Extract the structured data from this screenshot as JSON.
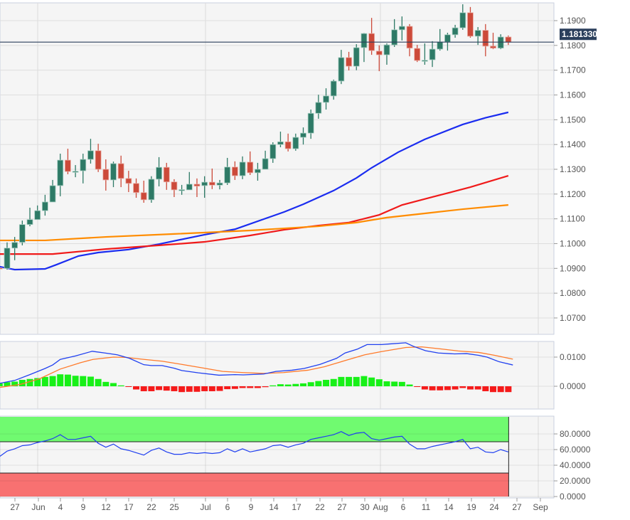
{
  "chart_data": [
    {
      "type": "candlestick",
      "title": "",
      "instrument_last_price": "1.181330",
      "y_ticks": [
        "1.1900",
        "1.1800",
        "1.1700",
        "1.1600",
        "1.1500",
        "1.1400",
        "1.1300",
        "1.1200",
        "1.1100",
        "1.1000",
        "1.0900",
        "1.0800",
        "1.0700"
      ],
      "ylim": [
        1.0635,
        1.2
      ],
      "x_ticks": [
        "27",
        "Jun",
        "4",
        "9",
        "12",
        "17",
        "22",
        "25",
        "Jul",
        "6",
        "9",
        "14",
        "17",
        "22",
        "27",
        "30",
        "Aug",
        "6",
        "11",
        "14",
        "19",
        "24",
        "27",
        "Sep"
      ],
      "candles_ohlc": [
        [
          1.0902,
          1.0905,
          1.0896,
          1.0899
        ],
        [
          1.09,
          1.1005,
          1.0895,
          1.0982
        ],
        [
          1.0982,
          1.1027,
          1.0933,
          1.1005
        ],
        [
          1.1005,
          1.1093,
          1.0993,
          1.1077
        ],
        [
          1.1077,
          1.1145,
          1.107,
          1.1097
        ],
        [
          1.1097,
          1.1154,
          1.1097,
          1.1133
        ],
        [
          1.1133,
          1.1197,
          1.1113,
          1.1168
        ],
        [
          1.1168,
          1.1257,
          1.1168,
          1.1234
        ],
        [
          1.1234,
          1.1363,
          1.1191,
          1.1337
        ],
        [
          1.1337,
          1.1383,
          1.128,
          1.1291
        ],
        [
          1.1291,
          1.1317,
          1.1268,
          1.1292
        ],
        [
          1.1294,
          1.1363,
          1.1243,
          1.134
        ],
        [
          1.134,
          1.1423,
          1.1323,
          1.1375
        ],
        [
          1.1375,
          1.1403,
          1.1289,
          1.13
        ],
        [
          1.13,
          1.134,
          1.1214,
          1.1257
        ],
        [
          1.1257,
          1.1331,
          1.1228,
          1.1323
        ],
        [
          1.1323,
          1.1355,
          1.1228,
          1.1263
        ],
        [
          1.1263,
          1.1294,
          1.1208,
          1.1243
        ],
        [
          1.1243,
          1.1263,
          1.1185,
          1.1206
        ],
        [
          1.1206,
          1.1254,
          1.1165,
          1.1177
        ],
        [
          1.1177,
          1.1272,
          1.1165,
          1.126
        ],
        [
          1.126,
          1.1349,
          1.1231,
          1.1308
        ],
        [
          1.1308,
          1.1326,
          1.1217,
          1.1249
        ],
        [
          1.1249,
          1.126,
          1.1188,
          1.1217
        ],
        [
          1.1216,
          1.1237,
          1.1197,
          1.1218
        ],
        [
          1.1217,
          1.1289,
          1.1217,
          1.124
        ],
        [
          1.124,
          1.1263,
          1.1188,
          1.1232
        ],
        [
          1.1234,
          1.1272,
          1.1185,
          1.1248
        ],
        [
          1.1248,
          1.1303,
          1.122,
          1.1236
        ],
        [
          1.1236,
          1.1257,
          1.1219,
          1.1245
        ],
        [
          1.1245,
          1.1346,
          1.1237,
          1.1309
        ],
        [
          1.1309,
          1.1332,
          1.1257,
          1.1274
        ],
        [
          1.1274,
          1.1352,
          1.126,
          1.1329
        ],
        [
          1.1329,
          1.1372,
          1.1277,
          1.1286
        ],
        [
          1.1286,
          1.1326,
          1.1254,
          1.13
        ],
        [
          1.13,
          1.1375,
          1.13,
          1.1343
        ],
        [
          1.1343,
          1.1409,
          1.1326,
          1.14
        ],
        [
          1.14,
          1.1452,
          1.1389,
          1.1411
        ],
        [
          1.1411,
          1.1444,
          1.1372,
          1.1383
        ],
        [
          1.1383,
          1.1444,
          1.1375,
          1.1429
        ],
        [
          1.1429,
          1.1469,
          1.14,
          1.1446
        ],
        [
          1.1446,
          1.1541,
          1.1423,
          1.1526
        ],
        [
          1.1526,
          1.1601,
          1.1504,
          1.157
        ],
        [
          1.157,
          1.1627,
          1.1541,
          1.1596
        ],
        [
          1.1596,
          1.1662,
          1.1581,
          1.1656
        ],
        [
          1.1656,
          1.1782,
          1.1644,
          1.1751
        ],
        [
          1.1751,
          1.1774,
          1.1699,
          1.1716
        ],
        [
          1.1716,
          1.1805,
          1.17,
          1.1791
        ],
        [
          1.1791,
          1.185,
          1.1733,
          1.1848
        ],
        [
          1.1848,
          1.1911,
          1.1762,
          1.1779
        ],
        [
          1.1777,
          1.18,
          1.1696,
          1.1762
        ],
        [
          1.1762,
          1.1808,
          1.1722,
          1.1802
        ],
        [
          1.1802,
          1.1906,
          1.1794,
          1.1863
        ],
        [
          1.1863,
          1.1917,
          1.182,
          1.1877
        ],
        [
          1.1877,
          1.1886,
          1.1756,
          1.1789
        ],
        [
          1.1788,
          1.1802,
          1.1733,
          1.1739
        ],
        [
          1.1739,
          1.1808,
          1.1722,
          1.174
        ],
        [
          1.1742,
          1.1817,
          1.1713,
          1.1785
        ],
        [
          1.1785,
          1.1866,
          1.1779,
          1.1814
        ],
        [
          1.1814,
          1.1851,
          1.1779,
          1.1843
        ],
        [
          1.1843,
          1.1883,
          1.1831,
          1.1871
        ],
        [
          1.1871,
          1.1966,
          1.1863,
          1.1932
        ],
        [
          1.1932,
          1.1955,
          1.1831,
          1.1837
        ],
        [
          1.1837,
          1.1874,
          1.1802,
          1.1861
        ],
        [
          1.1861,
          1.1886,
          1.1756,
          1.1797
        ],
        [
          1.1797,
          1.1851,
          1.1785,
          1.1789
        ],
        [
          1.1789,
          1.1845,
          1.1785,
          1.1834
        ],
        [
          1.1834,
          1.184,
          1.1802,
          1.1813
        ]
      ],
      "moving_averages": [
        {
          "name": "MA blue",
          "color": "#1a2cf0",
          "points": [
            [
              0,
              1.0907
            ],
            [
              2,
              1.0895
            ],
            [
              6,
              1.0898
            ],
            [
              7.5,
              1.0915
            ],
            [
              10.4,
              1.095
            ],
            [
              13,
              1.0964
            ],
            [
              17,
              1.0976
            ],
            [
              21,
              1.0998
            ],
            [
              27,
              1.1036
            ],
            [
              31,
              1.1058
            ],
            [
              37.5,
              1.1128
            ],
            [
              40,
              1.1159
            ],
            [
              44,
              1.1214
            ],
            [
              47,
              1.1265
            ],
            [
              49,
              1.1306
            ],
            [
              52.5,
              1.1369
            ],
            [
              56,
              1.1421
            ],
            [
              61,
              1.1481
            ],
            [
              64,
              1.1508
            ],
            [
              67,
              1.153
            ]
          ]
        },
        {
          "name": "MA red",
          "color": "#f01a1a",
          "points": [
            [
              0,
              1.0958
            ],
            [
              7,
              1.0958
            ],
            [
              14,
              1.0978
            ],
            [
              21,
              1.0993
            ],
            [
              27,
              1.1007
            ],
            [
              33,
              1.1033
            ],
            [
              37.5,
              1.1056
            ],
            [
              42,
              1.1073
            ],
            [
              46,
              1.1085
            ],
            [
              50,
              1.1116
            ],
            [
              53,
              1.1156
            ],
            [
              57,
              1.1188
            ],
            [
              62,
              1.1228
            ],
            [
              67,
              1.1274
            ]
          ]
        },
        {
          "name": "MA orange",
          "color": "#ff8c00",
          "points": [
            [
              0,
              1.1013
            ],
            [
              6,
              1.1013
            ],
            [
              14,
              1.1027
            ],
            [
              23,
              1.1039
            ],
            [
              33,
              1.1053
            ],
            [
              42,
              1.107
            ],
            [
              47,
              1.1085
            ],
            [
              51,
              1.1105
            ],
            [
              56,
              1.1122
            ],
            [
              61,
              1.1139
            ],
            [
              67,
              1.1156
            ]
          ]
        }
      ]
    },
    {
      "type": "macd",
      "y_ticks": [
        "0.0100",
        "0.0000"
      ],
      "histogram": [
        0.001,
        0.0014,
        0.0016,
        0.0022,
        0.0025,
        0.0028,
        0.0032,
        0.0035,
        0.0041,
        0.004,
        0.0036,
        0.0035,
        0.0033,
        0.0025,
        0.0015,
        0.0011,
        0.0003,
        -0.0002,
        -0.0011,
        -0.0017,
        -0.0017,
        -0.0013,
        -0.0015,
        -0.0017,
        -0.002,
        -0.0019,
        -0.0019,
        -0.0017,
        -0.0017,
        -0.0016,
        -0.001,
        -0.0009,
        -0.0006,
        -0.0006,
        -0.0006,
        -0.0003,
        0.0003,
        0.0007,
        0.0006,
        0.0008,
        0.001,
        0.0014,
        0.0018,
        0.0022,
        0.0025,
        0.0032,
        0.0032,
        0.0032,
        0.0035,
        0.003,
        0.0024,
        0.0017,
        0.0016,
        0.0015,
        0.0006,
        -0.0002,
        -0.0011,
        -0.0014,
        -0.0014,
        -0.0013,
        -0.0011,
        -0.0006,
        -0.0011,
        -0.0011,
        -0.0017,
        -0.002,
        -0.002,
        -0.002
      ],
      "macd_line": [
        [
          0,
          0.001
        ],
        [
          2,
          0.002
        ],
        [
          4,
          0.004
        ],
        [
          6,
          0.0061
        ],
        [
          7,
          0.0073
        ],
        [
          8,
          0.0092
        ],
        [
          10,
          0.0104
        ],
        [
          12.2,
          0.012
        ],
        [
          13.9,
          0.0114
        ],
        [
          15.5,
          0.0108
        ],
        [
          17.1,
          0.0096
        ],
        [
          19,
          0.0074
        ],
        [
          20,
          0.0071
        ],
        [
          21.4,
          0.0071
        ],
        [
          23,
          0.0062
        ],
        [
          24,
          0.0054
        ],
        [
          26.2,
          0.0046
        ],
        [
          28.9,
          0.0038
        ],
        [
          31,
          0.004
        ],
        [
          32.1,
          0.0039
        ],
        [
          34.8,
          0.0042
        ],
        [
          36.4,
          0.0051
        ],
        [
          38.5,
          0.0055
        ],
        [
          40.1,
          0.0061
        ],
        [
          42.2,
          0.0075
        ],
        [
          44.4,
          0.0096
        ],
        [
          45.5,
          0.0114
        ],
        [
          47.1,
          0.0127
        ],
        [
          48.4,
          0.0143
        ],
        [
          50.3,
          0.0143
        ],
        [
          51.3,
          0.0145
        ],
        [
          53.5,
          0.0149
        ],
        [
          54.5,
          0.0137
        ],
        [
          56.1,
          0.0122
        ],
        [
          57.8,
          0.0114
        ],
        [
          59.9,
          0.0111
        ],
        [
          61.5,
          0.0112
        ],
        [
          63.1,
          0.0106
        ],
        [
          64.2,
          0.01
        ],
        [
          65.8,
          0.0084
        ],
        [
          67.6,
          0.0073
        ]
      ],
      "signal_line": [
        [
          0,
          -0.0004
        ],
        [
          2.7,
          0.0006
        ],
        [
          5.3,
          0.0026
        ],
        [
          8,
          0.0059
        ],
        [
          10.7,
          0.0081
        ],
        [
          12.3,
          0.0092
        ],
        [
          15,
          0.01
        ],
        [
          16.6,
          0.0099
        ],
        [
          18.7,
          0.0093
        ],
        [
          21.4,
          0.0086
        ],
        [
          24,
          0.0075
        ],
        [
          26.7,
          0.0063
        ],
        [
          29.4,
          0.0051
        ],
        [
          32.1,
          0.0047
        ],
        [
          34.8,
          0.0044
        ],
        [
          37.4,
          0.0047
        ],
        [
          40.6,
          0.0055
        ],
        [
          42.8,
          0.0067
        ],
        [
          45.5,
          0.0088
        ],
        [
          48.1,
          0.0108
        ],
        [
          50.3,
          0.0119
        ],
        [
          53.5,
          0.0133
        ],
        [
          55.6,
          0.0135
        ],
        [
          57.8,
          0.0129
        ],
        [
          60.4,
          0.0121
        ],
        [
          63.1,
          0.0116
        ],
        [
          65.2,
          0.0106
        ],
        [
          67.6,
          0.0093
        ]
      ]
    },
    {
      "type": "rsi",
      "y_ticks": [
        "80.0000",
        "60.0000",
        "40.0000",
        "20.0000",
        "0.0000"
      ],
      "overbought": 70,
      "oversold": 30,
      "values": [
        51,
        58,
        61,
        65,
        66,
        69,
        71,
        74,
        79,
        73,
        73,
        75,
        77,
        68,
        63,
        67,
        61,
        59,
        56,
        53,
        59,
        62,
        57,
        54,
        54,
        56,
        55,
        56,
        55,
        56,
        61,
        57,
        61,
        57,
        59,
        61,
        65,
        66,
        63,
        66,
        68,
        73,
        75,
        77,
        79,
        83,
        78,
        81,
        82,
        74,
        72,
        74,
        76,
        77,
        67,
        61,
        61,
        64,
        66,
        68,
        70,
        73,
        61,
        63,
        57,
        56,
        60,
        57
      ]
    }
  ],
  "colors": {
    "up": "#2e7a66",
    "down": "#cc4a3a",
    "hist_up": "#18f018",
    "hist_down": "#f51a1a",
    "macd": "#2040f0",
    "signal": "#ff7a2a",
    "rsi": "#2040f0",
    "ob_band": "#70fa70",
    "os_band": "#f87171",
    "price_tag": "#2b3f5c"
  }
}
